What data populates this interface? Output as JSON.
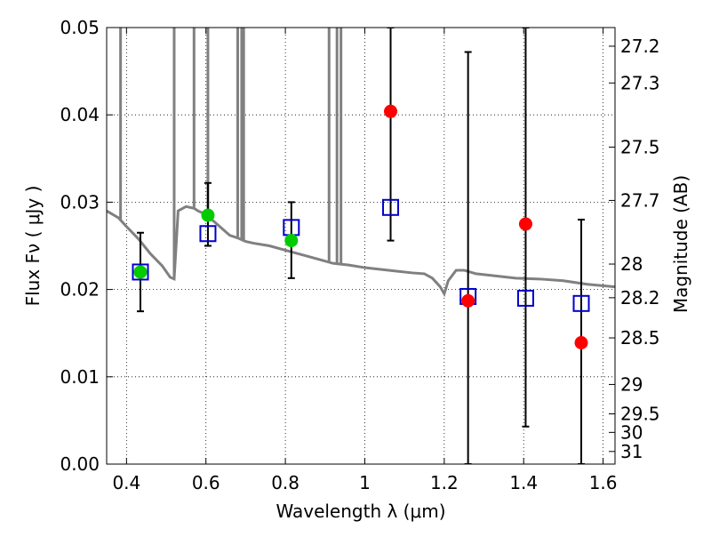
{
  "chart_data": {
    "type": "scatter",
    "xlabel": "Wavelength  λ (μm)",
    "ylabel": "Flux  Fν ( μJy )",
    "ylabel_right": "Magnitude (AB)",
    "xlim": [
      0.35,
      1.63
    ],
    "ylim": [
      0.0,
      0.05
    ],
    "grid": true,
    "x_ticks": [
      0.4,
      0.6,
      0.8,
      1.0,
      1.2,
      1.4,
      1.6
    ],
    "x_tick_labels": [
      "0.4",
      "0.6",
      "0.8",
      "1",
      "1.2",
      "1.4",
      "1.6"
    ],
    "y_ticks": [
      0.0,
      0.01,
      0.02,
      0.03,
      0.04,
      0.05
    ],
    "y_tick_labels": [
      "0.00",
      "0.01",
      "0.02",
      "0.03",
      "0.04",
      "0.05"
    ],
    "right_ticks": [
      {
        "mag": 27.2,
        "label": "27.2"
      },
      {
        "mag": 27.3,
        "label": "27.3"
      },
      {
        "mag": 27.5,
        "label": "27.5"
      },
      {
        "mag": 27.7,
        "label": "27.7"
      },
      {
        "mag": 28.0,
        "label": "28"
      },
      {
        "mag": 28.2,
        "label": "28.2"
      },
      {
        "mag": 28.5,
        "label": "28.5"
      },
      {
        "mag": 29.0,
        "label": "29"
      },
      {
        "mag": 29.5,
        "label": "29.5"
      },
      {
        "mag": 30.0,
        "label": "30"
      },
      {
        "mag": 31.0,
        "label": "31"
      }
    ],
    "series": [
      {
        "kind": "model-spectrum",
        "color": "#808080",
        "x": [
          0.35,
          0.38,
          0.4,
          0.43,
          0.46,
          0.49,
          0.51,
          0.52,
          0.53,
          0.55,
          0.57,
          0.58,
          0.6,
          0.62,
          0.64,
          0.66,
          0.68,
          0.7,
          0.72,
          0.76,
          0.8,
          0.84,
          0.88,
          0.92,
          0.96,
          1.0,
          1.04,
          1.08,
          1.12,
          1.15,
          1.17,
          1.19,
          1.2,
          1.21,
          1.23,
          1.25,
          1.28,
          1.32,
          1.38,
          1.44,
          1.5,
          1.56,
          1.63
        ],
        "y": [
          0.029,
          0.0282,
          0.0272,
          0.0258,
          0.0241,
          0.0227,
          0.0214,
          0.0212,
          0.029,
          0.0295,
          0.0293,
          0.029,
          0.0286,
          0.0278,
          0.027,
          0.0262,
          0.0259,
          0.0255,
          0.0253,
          0.025,
          0.0245,
          0.024,
          0.0235,
          0.023,
          0.0228,
          0.0225,
          0.0223,
          0.0221,
          0.0219,
          0.0218,
          0.0213,
          0.0203,
          0.0195,
          0.021,
          0.0222,
          0.0222,
          0.0218,
          0.0216,
          0.0213,
          0.0212,
          0.021,
          0.0206,
          0.0203
        ],
        "emission_spikes": [
          0.385,
          0.52,
          0.57,
          0.605,
          0.68,
          0.69,
          0.695,
          0.91,
          0.93,
          0.94
        ],
        "spike_peaks": [
          0.05,
          0.05,
          0.05,
          0.05,
          0.05,
          0.05,
          0.05,
          0.05,
          0.05,
          0.05
        ]
      },
      {
        "kind": "open-square",
        "color": "#0000cc",
        "x": [
          0.435,
          0.605,
          0.815,
          1.065,
          1.26,
          1.405,
          1.545
        ],
        "y": [
          0.022,
          0.0264,
          0.0271,
          0.0294,
          0.0192,
          0.019,
          0.0184
        ]
      },
      {
        "kind": "filled-circle",
        "color": "#00cc00",
        "x": [
          0.435,
          0.605,
          0.815
        ],
        "y": [
          0.022,
          0.0285,
          0.0256
        ]
      },
      {
        "kind": "filled-circle",
        "color": "#ff0000",
        "x": [
          1.065,
          1.26,
          1.405,
          1.545
        ],
        "y": [
          0.0404,
          0.0187,
          0.0275,
          0.0139
        ]
      },
      {
        "kind": "errorbar",
        "color": "#000000",
        "x": [
          0.435,
          0.605,
          0.815,
          1.065,
          1.26,
          1.405,
          1.545
        ],
        "low": [
          0.0175,
          0.025,
          0.0213,
          0.0256,
          0.0,
          0.0043,
          0.0
        ],
        "high": [
          0.0265,
          0.0322,
          0.03,
          0.05,
          0.0472,
          0.05,
          0.028
        ]
      }
    ]
  }
}
